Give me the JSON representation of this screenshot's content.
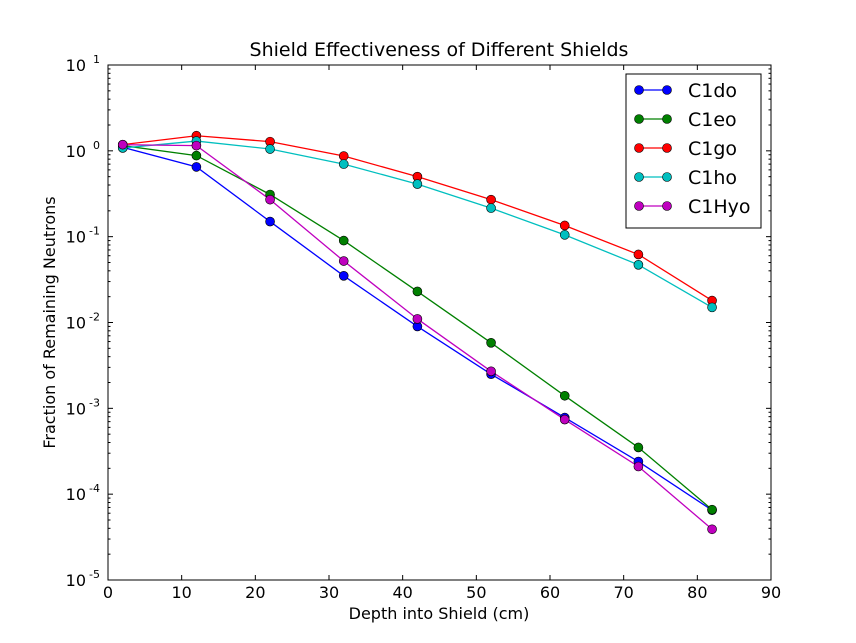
{
  "chart_data": {
    "type": "line",
    "title": "Shield Effectiveness of Different Shields",
    "xlabel": "Depth into Shield (cm)",
    "ylabel": "Fraction of Remaining Neutrons",
    "xlim": [
      0,
      90
    ],
    "ylim": [
      1e-05,
      10
    ],
    "yscale": "log",
    "grid": false,
    "legend_position": "top-right",
    "x_ticks": [
      "0",
      "10",
      "20",
      "30",
      "40",
      "50",
      "60",
      "70",
      "80",
      "90"
    ],
    "y_ticks": [
      {
        "base": "10",
        "exp": "-5"
      },
      {
        "base": "10",
        "exp": "-4"
      },
      {
        "base": "10",
        "exp": "-3"
      },
      {
        "base": "10",
        "exp": "-2"
      },
      {
        "base": "10",
        "exp": "-1"
      },
      {
        "base": "10",
        "exp": "0"
      },
      {
        "base": "10",
        "exp": "1"
      }
    ],
    "x": [
      2,
      12,
      22,
      32,
      42,
      52,
      62,
      72,
      82
    ],
    "series": [
      {
        "name": "C1do",
        "color": "#0000ff",
        "values": [
          1.1,
          0.65,
          0.15,
          0.035,
          0.009,
          0.0025,
          0.00078,
          0.00024,
          6.5e-05
        ]
      },
      {
        "name": "C1eo",
        "color": "#008000",
        "values": [
          1.15,
          0.88,
          0.31,
          0.09,
          0.023,
          0.0058,
          0.0014,
          0.00035,
          6.6e-05
        ]
      },
      {
        "name": "C1go",
        "color": "#ff0000",
        "values": [
          1.18,
          1.5,
          1.28,
          0.87,
          0.5,
          0.27,
          0.135,
          0.062,
          0.018
        ]
      },
      {
        "name": "C1ho",
        "color": "#00bfbf",
        "values": [
          1.08,
          1.3,
          1.05,
          0.7,
          0.41,
          0.215,
          0.105,
          0.047,
          0.015
        ]
      },
      {
        "name": "C1Hyo",
        "color": "#bf00bf",
        "values": [
          1.18,
          1.15,
          0.27,
          0.052,
          0.011,
          0.0027,
          0.00074,
          0.00021,
          3.9e-05
        ]
      }
    ]
  }
}
